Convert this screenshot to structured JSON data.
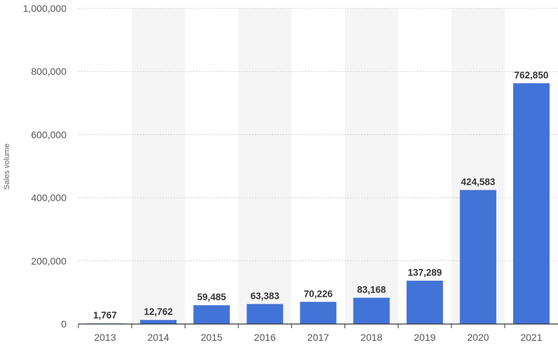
{
  "chart_data": {
    "type": "bar",
    "title": "",
    "xlabel": "",
    "ylabel": "Sales volume",
    "categories": [
      "2013",
      "2014",
      "2015",
      "2016",
      "2017",
      "2018",
      "2019",
      "2020",
      "2021"
    ],
    "values": [
      1767,
      12762,
      59485,
      63383,
      70226,
      83168,
      137289,
      424583,
      762850
    ],
    "value_labels": [
      "1,767",
      "12,762",
      "59,485",
      "63,383",
      "70,226",
      "83,168",
      "137,289",
      "424,583",
      "762,850"
    ],
    "ylim": [
      0,
      1000000
    ],
    "y_ticks": [
      0,
      200000,
      400000,
      600000,
      800000,
      1000000
    ],
    "y_tick_labels": [
      "0",
      "200,000",
      "400,000",
      "600,000",
      "800,000",
      "1,000,000"
    ],
    "grid": true,
    "alternating_column_shading": true,
    "colors": {
      "bar": "#4273d6",
      "band": "#f5f5f5",
      "grid": "#cfcfcf",
      "axis": "#333333"
    }
  }
}
